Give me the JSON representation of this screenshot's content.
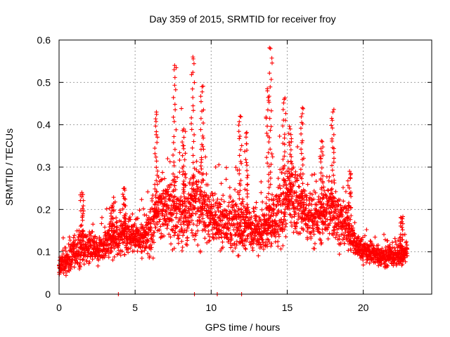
{
  "chart_data": {
    "type": "scatter",
    "title": "Day 359 of 2015, SRMTID for receiver froy",
    "xlabel": "GPS time / hours",
    "ylabel": "SRMTID / TECUs",
    "xlim": [
      0,
      24.5
    ],
    "ylim": [
      0,
      0.6
    ],
    "xticks": [
      0,
      5,
      10,
      15,
      20
    ],
    "yticks": [
      0,
      0.1,
      0.2,
      0.3,
      0.4,
      0.5,
      0.6
    ],
    "xtick_labels": [
      "0",
      "5",
      "10",
      "15",
      "20"
    ],
    "ytick_labels": [
      "0",
      "0.1",
      "0.2",
      "0.3",
      "0.4",
      "0.5",
      "0.6"
    ],
    "grid": true,
    "marker": "+",
    "color": "#ff0000",
    "series": [
      {
        "name": "SRMTID",
        "profile_x": [
          0,
          0.5,
          1,
          1.5,
          2,
          2.5,
          3,
          3.5,
          4,
          4.5,
          5,
          5.5,
          6,
          6.5,
          7,
          7.5,
          8,
          8.5,
          9,
          9.5,
          10,
          10.5,
          11,
          11.5,
          12,
          12.5,
          13,
          13.5,
          14,
          14.5,
          15,
          15.5,
          16,
          16.5,
          17,
          17.5,
          18,
          18.5,
          19,
          19.5,
          20,
          20.5,
          21,
          21.5,
          22,
          22.5,
          22.9
        ],
        "profile_median": [
          0.06,
          0.08,
          0.1,
          0.11,
          0.11,
          0.11,
          0.12,
          0.13,
          0.13,
          0.14,
          0.14,
          0.13,
          0.14,
          0.19,
          0.21,
          0.2,
          0.19,
          0.2,
          0.2,
          0.2,
          0.18,
          0.17,
          0.17,
          0.17,
          0.16,
          0.16,
          0.15,
          0.15,
          0.17,
          0.19,
          0.22,
          0.22,
          0.2,
          0.18,
          0.18,
          0.19,
          0.2,
          0.17,
          0.15,
          0.12,
          0.1,
          0.1,
          0.09,
          0.09,
          0.09,
          0.09,
          0.1
        ],
        "profile_spread": [
          0.03,
          0.04,
          0.04,
          0.05,
          0.04,
          0.04,
          0.04,
          0.05,
          0.05,
          0.05,
          0.05,
          0.05,
          0.06,
          0.08,
          0.09,
          0.1,
          0.1,
          0.11,
          0.12,
          0.1,
          0.07,
          0.07,
          0.07,
          0.08,
          0.08,
          0.07,
          0.06,
          0.07,
          0.09,
          0.1,
          0.1,
          0.1,
          0.09,
          0.07,
          0.07,
          0.08,
          0.08,
          0.07,
          0.05,
          0.04,
          0.03,
          0.03,
          0.03,
          0.03,
          0.03,
          0.03,
          0.03
        ],
        "peaks": [
          {
            "x": 1.5,
            "y": 0.24
          },
          {
            "x": 3.5,
            "y": 0.21
          },
          {
            "x": 4.3,
            "y": 0.25
          },
          {
            "x": 6.4,
            "y": 0.43
          },
          {
            "x": 7.6,
            "y": 0.54
          },
          {
            "x": 8.2,
            "y": 0.39
          },
          {
            "x": 8.8,
            "y": 0.56
          },
          {
            "x": 9.4,
            "y": 0.49
          },
          {
            "x": 11.9,
            "y": 0.42
          },
          {
            "x": 12.3,
            "y": 0.38
          },
          {
            "x": 13.7,
            "y": 0.48
          },
          {
            "x": 13.9,
            "y": 0.58
          },
          {
            "x": 14.8,
            "y": 0.46
          },
          {
            "x": 15.2,
            "y": 0.39
          },
          {
            "x": 16,
            "y": 0.44
          },
          {
            "x": 17.3,
            "y": 0.36
          },
          {
            "x": 18,
            "y": 0.43
          },
          {
            "x": 19.1,
            "y": 0.29
          },
          {
            "x": 22.5,
            "y": 0.18
          }
        ],
        "zero_points": [
          {
            "x": 3.9,
            "y": 0
          },
          {
            "x": 8.9,
            "y": 0
          },
          {
            "x": 10.4,
            "y": 0
          },
          {
            "x": 12,
            "y": 0
          }
        ]
      }
    ]
  }
}
